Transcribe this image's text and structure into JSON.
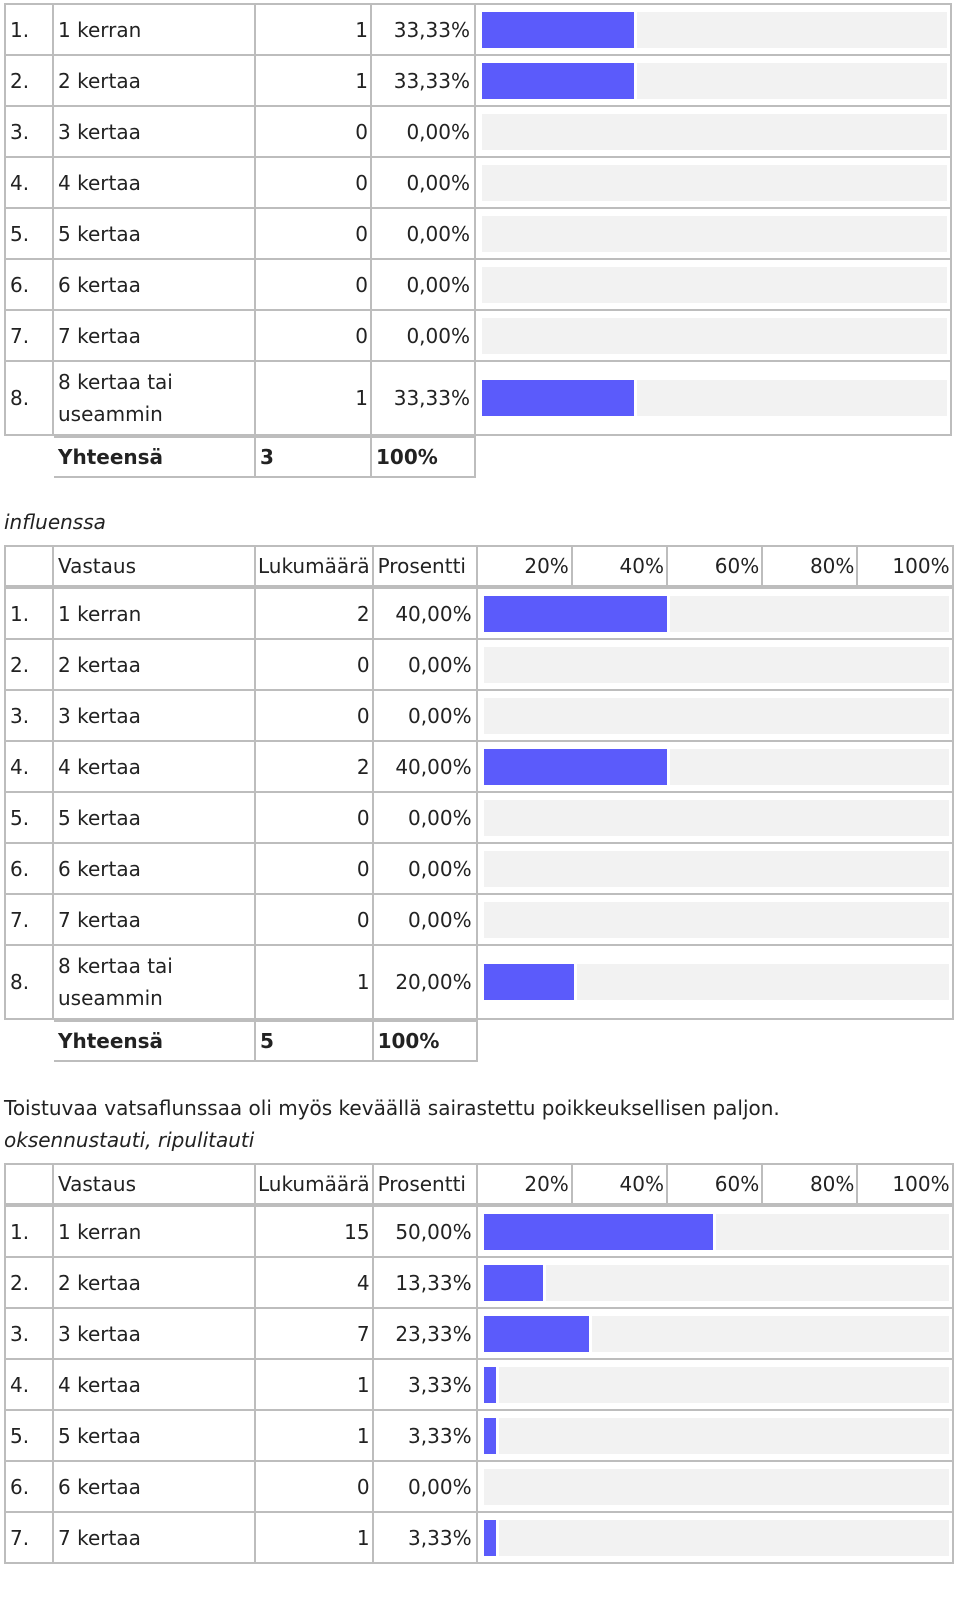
{
  "header": {
    "answer": "Vastaus",
    "count": "Lukumäärä",
    "percent": "Prosentti",
    "ticks": [
      "20%",
      "40%",
      "60%",
      "80%",
      "100%"
    ]
  },
  "total_label": "Yhteensä",
  "section1": {
    "rows": [
      {
        "n": "1.",
        "answer": "1 kerran",
        "count": "1",
        "pct": "33,33%",
        "value": 33.33
      },
      {
        "n": "2.",
        "answer": "2 kertaa",
        "count": "1",
        "pct": "33,33%",
        "value": 33.33
      },
      {
        "n": "3.",
        "answer": "3 kertaa",
        "count": "0",
        "pct": "0,00%",
        "value": 0
      },
      {
        "n": "4.",
        "answer": "4 kertaa",
        "count": "0",
        "pct": "0,00%",
        "value": 0
      },
      {
        "n": "5.",
        "answer": "5 kertaa",
        "count": "0",
        "pct": "0,00%",
        "value": 0
      },
      {
        "n": "6.",
        "answer": "6 kertaa",
        "count": "0",
        "pct": "0,00%",
        "value": 0
      },
      {
        "n": "7.",
        "answer": "7 kertaa",
        "count": "0",
        "pct": "0,00%",
        "value": 0
      },
      {
        "n": "8.",
        "answer": "8 kertaa tai useammin",
        "count": "1",
        "pct": "33,33%",
        "value": 33.33
      }
    ],
    "total_count": "3",
    "total_pct": "100%"
  },
  "section2": {
    "caption": "influenssa",
    "rows": [
      {
        "n": "1.",
        "answer": "1 kerran",
        "count": "2",
        "pct": "40,00%",
        "value": 40
      },
      {
        "n": "2.",
        "answer": "2 kertaa",
        "count": "0",
        "pct": "0,00%",
        "value": 0
      },
      {
        "n": "3.",
        "answer": "3 kertaa",
        "count": "0",
        "pct": "0,00%",
        "value": 0
      },
      {
        "n": "4.",
        "answer": "4 kertaa",
        "count": "2",
        "pct": "40,00%",
        "value": 40
      },
      {
        "n": "5.",
        "answer": "5 kertaa",
        "count": "0",
        "pct": "0,00%",
        "value": 0
      },
      {
        "n": "6.",
        "answer": "6 kertaa",
        "count": "0",
        "pct": "0,00%",
        "value": 0
      },
      {
        "n": "7.",
        "answer": "7 kertaa",
        "count": "0",
        "pct": "0,00%",
        "value": 0
      },
      {
        "n": "8.",
        "answer": "8 kertaa tai useammin",
        "count": "1",
        "pct": "20,00%",
        "value": 20
      }
    ],
    "total_count": "5",
    "total_pct": "100%"
  },
  "note": "Toistuvaa vatsaflunssaa oli myös keväällä sairastettu poikkeuksellisen paljon.",
  "section3": {
    "caption": "oksennustauti, ripulitauti",
    "rows": [
      {
        "n": "1.",
        "answer": "1 kerran",
        "count": "15",
        "pct": "50,00%",
        "value": 50
      },
      {
        "n": "2.",
        "answer": "2 kertaa",
        "count": "4",
        "pct": "13,33%",
        "value": 13.33
      },
      {
        "n": "3.",
        "answer": "3 kertaa",
        "count": "7",
        "pct": "23,33%",
        "value": 23.33
      },
      {
        "n": "4.",
        "answer": "4 kertaa",
        "count": "1",
        "pct": "3,33%",
        "value": 3.33
      },
      {
        "n": "5.",
        "answer": "5 kertaa",
        "count": "1",
        "pct": "3,33%",
        "value": 3.33
      },
      {
        "n": "6.",
        "answer": "6 kertaa",
        "count": "0",
        "pct": "0,00%",
        "value": 0
      },
      {
        "n": "7.",
        "answer": "7 kertaa",
        "count": "1",
        "pct": "3,33%",
        "value": 3.33
      }
    ]
  },
  "colors": {
    "bar": "#5b5bfb",
    "track": "#f2f2f2",
    "border": "#bdbdbd"
  }
}
